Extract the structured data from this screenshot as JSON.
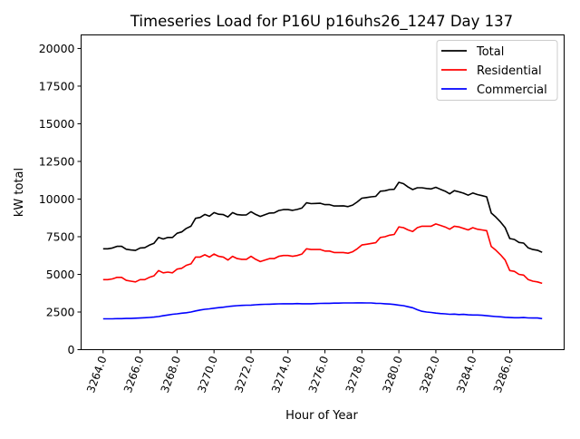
{
  "chart_data": {
    "type": "line",
    "title": "Timeseries Load for P16U p16uhs26_1247  Day 137",
    "xlabel": "Hour of Year",
    "ylabel": "kW total",
    "x_start": 3264,
    "x_step": 0.25,
    "xlim": [
      3262.81,
      3288.94
    ],
    "ylim": [
      0,
      20900
    ],
    "xticks": [
      3264,
      3266,
      3268,
      3270,
      3272,
      3274,
      3276,
      3278,
      3280,
      3282,
      3284,
      3286
    ],
    "xtick_labels": [
      "3264.0",
      "3266.0",
      "3268.0",
      "3270.0",
      "3272.0",
      "3274.0",
      "3276.0",
      "3278.0",
      "3280.0",
      "3282.0",
      "3284.0",
      "3286.0"
    ],
    "yticks": [
      0,
      2500,
      5000,
      7500,
      10000,
      12500,
      15000,
      17500,
      20000
    ],
    "ytick_labels": [
      "0",
      "2500",
      "5000",
      "7500",
      "10000",
      "12500",
      "15000",
      "17500",
      "20000"
    ],
    "grid": false,
    "legend_position": "top-right",
    "series": [
      {
        "name": "Total",
        "color": "#000000",
        "values": [
          6700,
          6700,
          6750,
          6860,
          6860,
          6670,
          6620,
          6590,
          6750,
          6770,
          6940,
          7060,
          7450,
          7350,
          7450,
          7450,
          7730,
          7820,
          8050,
          8200,
          8720,
          8780,
          8980,
          8860,
          9100,
          8990,
          8970,
          8810,
          9100,
          8970,
          8940,
          8950,
          9160,
          8980,
          8850,
          8960,
          9070,
          9080,
          9240,
          9300,
          9300,
          9250,
          9310,
          9400,
          9750,
          9700,
          9710,
          9720,
          9630,
          9630,
          9540,
          9540,
          9550,
          9500,
          9600,
          9810,
          10060,
          10100,
          10150,
          10180,
          10520,
          10550,
          10630,
          10650,
          11110,
          11020,
          10800,
          10630,
          10750,
          10750,
          10700,
          10670,
          10780,
          10650,
          10530,
          10350,
          10560,
          10480,
          10390,
          10260,
          10400,
          10300,
          10230,
          10150,
          9070,
          8800,
          8480,
          8100,
          7380,
          7320,
          7120,
          7080,
          6760,
          6650,
          6600,
          6460
        ]
      },
      {
        "name": "Residential",
        "color": "#ff0000",
        "values": [
          4650,
          4650,
          4700,
          4800,
          4800,
          4600,
          4550,
          4500,
          4650,
          4650,
          4800,
          4900,
          5250,
          5100,
          5150,
          5100,
          5350,
          5400,
          5600,
          5700,
          6150,
          6150,
          6300,
          6150,
          6350,
          6200,
          6150,
          5950,
          6200,
          6050,
          6000,
          6000,
          6200,
          6000,
          5850,
          5950,
          6050,
          6050,
          6200,
          6250,
          6250,
          6200,
          6250,
          6350,
          6700,
          6650,
          6650,
          6650,
          6550,
          6550,
          6450,
          6450,
          6450,
          6400,
          6500,
          6700,
          6950,
          7000,
          7050,
          7100,
          7450,
          7500,
          7600,
          7650,
          8150,
          8100,
          7950,
          7850,
          8100,
          8200,
          8200,
          8200,
          8350,
          8250,
          8150,
          8000,
          8200,
          8150,
          8050,
          7950,
          8100,
          8000,
          7950,
          7900,
          6850,
          6600,
          6300,
          5950,
          5250,
          5200,
          5000,
          4950,
          4650,
          4550,
          4500,
          4400
        ]
      },
      {
        "name": "Commercial",
        "color": "#0000ff",
        "values": [
          2050,
          2050,
          2050,
          2060,
          2060,
          2070,
          2070,
          2090,
          2100,
          2120,
          2140,
          2160,
          2200,
          2250,
          2300,
          2350,
          2380,
          2420,
          2450,
          2500,
          2570,
          2630,
          2680,
          2710,
          2750,
          2790,
          2820,
          2860,
          2900,
          2920,
          2940,
          2950,
          2960,
          2980,
          3000,
          3010,
          3020,
          3030,
          3040,
          3050,
          3050,
          3050,
          3060,
          3050,
          3050,
          3050,
          3060,
          3070,
          3080,
          3080,
          3090,
          3090,
          3100,
          3100,
          3100,
          3110,
          3110,
          3100,
          3100,
          3080,
          3070,
          3050,
          3030,
          3000,
          2960,
          2920,
          2850,
          2780,
          2650,
          2550,
          2500,
          2470,
          2430,
          2400,
          2380,
          2350,
          2360,
          2330,
          2340,
          2310,
          2300,
          2300,
          2280,
          2250,
          2220,
          2200,
          2180,
          2150,
          2130,
          2120,
          2120,
          2130,
          2110,
          2100,
          2100,
          2060
        ]
      }
    ]
  }
}
